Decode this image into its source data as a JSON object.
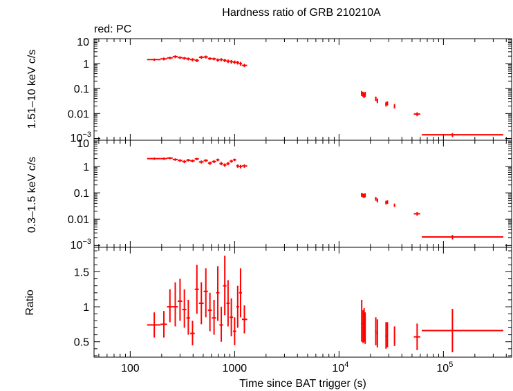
{
  "chart_data": {
    "type": "scatter",
    "title": "Hardness ratio of GRB 210210A",
    "legend_text": "red: PC",
    "xlabel": "Time since BAT trigger (s)",
    "x_scale": "log",
    "xlim": [
      45,
      450000
    ],
    "x_tick_labels": [
      {
        "value": 100,
        "label": "100"
      },
      {
        "value": 1000,
        "label": "1000"
      },
      {
        "value": 10000,
        "base": "10",
        "exp": "4"
      },
      {
        "value": 100000,
        "base": "10",
        "exp": "5"
      }
    ],
    "series_color": "#ff0000",
    "panels": [
      {
        "name": "hard",
        "ylabel": "1.51–10 keV c/s",
        "y_scale": "log",
        "ylim": [
          0.00085,
          10
        ],
        "y_tick_labels": [
          {
            "value": 10,
            "label": "10"
          },
          {
            "value": 1,
            "label": "1"
          },
          {
            "value": 0.1,
            "label": "0.1"
          },
          {
            "value": 0.01,
            "label": "0.01"
          },
          {
            "value": 0.001,
            "base": "10",
            "exp": "−3"
          }
        ],
        "points": [
          {
            "x": 170,
            "y": 1.45,
            "xlo": 145,
            "xhi": 195,
            "ylo": 1.3,
            "yhi": 1.6
          },
          {
            "x": 210,
            "y": 1.55,
            "xlo": 195,
            "xhi": 225,
            "ylo": 1.35,
            "yhi": 1.75
          },
          {
            "x": 240,
            "y": 1.7,
            "xlo": 225,
            "xhi": 255,
            "ylo": 1.5,
            "yhi": 1.9
          },
          {
            "x": 270,
            "y": 1.9,
            "xlo": 255,
            "xhi": 285,
            "ylo": 1.65,
            "yhi": 2.15
          },
          {
            "x": 300,
            "y": 1.75,
            "xlo": 285,
            "xhi": 315,
            "ylo": 1.55,
            "yhi": 1.95
          },
          {
            "x": 330,
            "y": 1.65,
            "xlo": 315,
            "xhi": 345,
            "ylo": 1.45,
            "yhi": 1.85
          },
          {
            "x": 360,
            "y": 1.55,
            "xlo": 345,
            "xhi": 375,
            "ylo": 1.35,
            "yhi": 1.75
          },
          {
            "x": 395,
            "y": 1.45,
            "xlo": 375,
            "xhi": 415,
            "ylo": 1.25,
            "yhi": 1.65
          },
          {
            "x": 435,
            "y": 1.35,
            "xlo": 415,
            "xhi": 455,
            "ylo": 1.15,
            "yhi": 1.55
          },
          {
            "x": 480,
            "y": 1.8,
            "xlo": 455,
            "xhi": 505,
            "ylo": 1.55,
            "yhi": 2.05
          },
          {
            "x": 530,
            "y": 1.85,
            "xlo": 505,
            "xhi": 555,
            "ylo": 1.6,
            "yhi": 2.1
          },
          {
            "x": 580,
            "y": 1.6,
            "xlo": 555,
            "xhi": 605,
            "ylo": 1.4,
            "yhi": 1.8
          },
          {
            "x": 635,
            "y": 1.55,
            "xlo": 605,
            "xhi": 665,
            "ylo": 1.35,
            "yhi": 1.75
          },
          {
            "x": 690,
            "y": 1.4,
            "xlo": 665,
            "xhi": 715,
            "ylo": 1.2,
            "yhi": 1.6
          },
          {
            "x": 745,
            "y": 1.45,
            "xlo": 715,
            "xhi": 775,
            "ylo": 1.25,
            "yhi": 1.65
          },
          {
            "x": 805,
            "y": 1.35,
            "xlo": 775,
            "xhi": 835,
            "ylo": 1.15,
            "yhi": 1.55
          },
          {
            "x": 865,
            "y": 1.25,
            "xlo": 835,
            "xhi": 895,
            "ylo": 1.05,
            "yhi": 1.45
          },
          {
            "x": 930,
            "y": 1.2,
            "xlo": 895,
            "xhi": 965,
            "ylo": 1.0,
            "yhi": 1.4
          },
          {
            "x": 1000,
            "y": 1.15,
            "xlo": 965,
            "xhi": 1035,
            "ylo": 0.97,
            "yhi": 1.33
          },
          {
            "x": 1070,
            "y": 1.1,
            "xlo": 1035,
            "xhi": 1105,
            "ylo": 0.92,
            "yhi": 1.28
          },
          {
            "x": 1140,
            "y": 1.0,
            "xlo": 1105,
            "xhi": 1175,
            "ylo": 0.83,
            "yhi": 1.17
          },
          {
            "x": 1240,
            "y": 0.85,
            "xlo": 1175,
            "xhi": 1320,
            "ylo": 0.72,
            "yhi": 0.98
          },
          {
            "x": 16500,
            "y": 0.065,
            "xlo": 16200,
            "xhi": 16800,
            "ylo": 0.05,
            "yhi": 0.08
          },
          {
            "x": 17000,
            "y": 0.06,
            "xlo": 16800,
            "xhi": 17200,
            "ylo": 0.046,
            "yhi": 0.074
          },
          {
            "x": 17400,
            "y": 0.055,
            "xlo": 17200,
            "xhi": 17600,
            "ylo": 0.042,
            "yhi": 0.068
          },
          {
            "x": 17800,
            "y": 0.06,
            "xlo": 17600,
            "xhi": 18000,
            "ylo": 0.046,
            "yhi": 0.074
          },
          {
            "x": 22500,
            "y": 0.04,
            "xlo": 22100,
            "xhi": 22900,
            "ylo": 0.032,
            "yhi": 0.048
          },
          {
            "x": 23300,
            "y": 0.033,
            "xlo": 22900,
            "xhi": 23700,
            "ylo": 0.026,
            "yhi": 0.04
          },
          {
            "x": 28200,
            "y": 0.024,
            "xlo": 27700,
            "xhi": 28700,
            "ylo": 0.019,
            "yhi": 0.029
          },
          {
            "x": 29100,
            "y": 0.026,
            "xlo": 28700,
            "xhi": 29500,
            "ylo": 0.021,
            "yhi": 0.031
          },
          {
            "x": 34000,
            "y": 0.02,
            "xlo": 33500,
            "xhi": 34500,
            "ylo": 0.016,
            "yhi": 0.024
          },
          {
            "x": 56000,
            "y": 0.0095,
            "xlo": 52000,
            "xhi": 60000,
            "ylo": 0.0078,
            "yhi": 0.0112
          },
          {
            "x": 122000,
            "y": 0.0014,
            "xlo": 62000,
            "xhi": 375000,
            "ylo": 0.00115,
            "yhi": 0.00165
          }
        ]
      },
      {
        "name": "soft",
        "ylabel": "0.3–1.5 keV c/s",
        "y_scale": "log",
        "ylim": [
          0.00085,
          10
        ],
        "y_tick_labels": [
          {
            "value": 10,
            "label": "10"
          },
          {
            "value": 1,
            "label": "1"
          },
          {
            "value": 0.1,
            "label": "0.1"
          },
          {
            "value": 0.01,
            "label": "0.01"
          },
          {
            "value": 0.001,
            "base": "10",
            "exp": "−3"
          }
        ],
        "points": [
          {
            "x": 170,
            "y": 2.0,
            "xlo": 145,
            "xhi": 195,
            "ylo": 1.8,
            "yhi": 2.2
          },
          {
            "x": 210,
            "y": 2.0,
            "xlo": 195,
            "xhi": 225,
            "ylo": 1.8,
            "yhi": 2.2
          },
          {
            "x": 240,
            "y": 2.1,
            "xlo": 225,
            "xhi": 255,
            "ylo": 1.9,
            "yhi": 2.3
          },
          {
            "x": 270,
            "y": 1.85,
            "xlo": 255,
            "xhi": 285,
            "ylo": 1.65,
            "yhi": 2.05
          },
          {
            "x": 300,
            "y": 1.7,
            "xlo": 285,
            "xhi": 315,
            "ylo": 1.5,
            "yhi": 1.9
          },
          {
            "x": 330,
            "y": 1.55,
            "xlo": 315,
            "xhi": 345,
            "ylo": 1.35,
            "yhi": 1.75
          },
          {
            "x": 360,
            "y": 1.75,
            "xlo": 345,
            "xhi": 375,
            "ylo": 1.55,
            "yhi": 1.95
          },
          {
            "x": 395,
            "y": 1.65,
            "xlo": 375,
            "xhi": 415,
            "ylo": 1.45,
            "yhi": 1.85
          },
          {
            "x": 435,
            "y": 1.95,
            "xlo": 415,
            "xhi": 455,
            "ylo": 1.75,
            "yhi": 2.15
          },
          {
            "x": 480,
            "y": 1.5,
            "xlo": 455,
            "xhi": 505,
            "ylo": 1.3,
            "yhi": 1.7
          },
          {
            "x": 530,
            "y": 1.7,
            "xlo": 505,
            "xhi": 555,
            "ylo": 1.5,
            "yhi": 1.9
          },
          {
            "x": 580,
            "y": 1.35,
            "xlo": 555,
            "xhi": 605,
            "ylo": 1.15,
            "yhi": 1.55
          },
          {
            "x": 635,
            "y": 1.55,
            "xlo": 605,
            "xhi": 665,
            "ylo": 1.35,
            "yhi": 1.75
          },
          {
            "x": 690,
            "y": 1.8,
            "xlo": 665,
            "xhi": 715,
            "ylo": 1.6,
            "yhi": 2.0
          },
          {
            "x": 745,
            "y": 1.3,
            "xlo": 715,
            "xhi": 775,
            "ylo": 1.12,
            "yhi": 1.48
          },
          {
            "x": 805,
            "y": 1.15,
            "xlo": 775,
            "xhi": 835,
            "ylo": 0.98,
            "yhi": 1.32
          },
          {
            "x": 865,
            "y": 1.3,
            "xlo": 835,
            "xhi": 895,
            "ylo": 1.12,
            "yhi": 1.48
          },
          {
            "x": 930,
            "y": 1.6,
            "xlo": 895,
            "xhi": 965,
            "ylo": 1.4,
            "yhi": 1.8
          },
          {
            "x": 1000,
            "y": 1.8,
            "xlo": 965,
            "xhi": 1035,
            "ylo": 1.6,
            "yhi": 2.0
          },
          {
            "x": 1070,
            "y": 1.05,
            "xlo": 1035,
            "xhi": 1105,
            "ylo": 0.9,
            "yhi": 1.2
          },
          {
            "x": 1140,
            "y": 1.0,
            "xlo": 1105,
            "xhi": 1175,
            "ylo": 0.85,
            "yhi": 1.15
          },
          {
            "x": 1240,
            "y": 1.05,
            "xlo": 1175,
            "xhi": 1320,
            "ylo": 0.9,
            "yhi": 1.2
          },
          {
            "x": 16500,
            "y": 0.085,
            "xlo": 16200,
            "xhi": 16800,
            "ylo": 0.07,
            "yhi": 0.1
          },
          {
            "x": 17000,
            "y": 0.08,
            "xlo": 16800,
            "xhi": 17200,
            "ylo": 0.066,
            "yhi": 0.094
          },
          {
            "x": 17400,
            "y": 0.078,
            "xlo": 17200,
            "xhi": 17600,
            "ylo": 0.064,
            "yhi": 0.092
          },
          {
            "x": 17800,
            "y": 0.082,
            "xlo": 17600,
            "xhi": 18000,
            "ylo": 0.068,
            "yhi": 0.096
          },
          {
            "x": 22500,
            "y": 0.06,
            "xlo": 22100,
            "xhi": 22900,
            "ylo": 0.05,
            "yhi": 0.07
          },
          {
            "x": 23300,
            "y": 0.052,
            "xlo": 22900,
            "xhi": 23700,
            "ylo": 0.043,
            "yhi": 0.061
          },
          {
            "x": 28200,
            "y": 0.043,
            "xlo": 27700,
            "xhi": 28700,
            "ylo": 0.036,
            "yhi": 0.05
          },
          {
            "x": 29100,
            "y": 0.045,
            "xlo": 28700,
            "xhi": 29500,
            "ylo": 0.038,
            "yhi": 0.052
          },
          {
            "x": 34000,
            "y": 0.034,
            "xlo": 33500,
            "xhi": 34500,
            "ylo": 0.029,
            "yhi": 0.039
          },
          {
            "x": 56000,
            "y": 0.016,
            "xlo": 52000,
            "xhi": 60000,
            "ylo": 0.0135,
            "yhi": 0.0185
          },
          {
            "x": 122000,
            "y": 0.0021,
            "xlo": 62000,
            "xhi": 375000,
            "ylo": 0.0017,
            "yhi": 0.0025
          }
        ]
      },
      {
        "name": "ratio",
        "ylabel": "Ratio",
        "y_scale": "linear",
        "ylim": [
          0.28,
          1.85
        ],
        "y_tick_labels": [
          {
            "value": 1.5,
            "label": "1.5"
          },
          {
            "value": 1.0,
            "label": "1"
          },
          {
            "value": 0.5,
            "label": "0.5"
          }
        ],
        "y_minor_ticks": [
          0.3,
          0.4,
          0.6,
          0.7,
          0.8,
          0.9,
          1.1,
          1.2,
          1.3,
          1.4,
          1.6,
          1.7,
          1.8
        ],
        "points": [
          {
            "x": 170,
            "y": 0.74,
            "xlo": 145,
            "xhi": 195,
            "ylo": 0.56,
            "yhi": 0.92
          },
          {
            "x": 210,
            "y": 0.75,
            "xlo": 195,
            "xhi": 225,
            "ylo": 0.56,
            "yhi": 0.94
          },
          {
            "x": 240,
            "y": 1.0,
            "xlo": 225,
            "xhi": 255,
            "ylo": 0.78,
            "yhi": 1.25
          },
          {
            "x": 270,
            "y": 1.0,
            "xlo": 255,
            "xhi": 285,
            "ylo": 0.72,
            "yhi": 1.35
          },
          {
            "x": 300,
            "y": 1.08,
            "xlo": 285,
            "xhi": 315,
            "ylo": 0.8,
            "yhi": 1.4
          },
          {
            "x": 330,
            "y": 0.96,
            "xlo": 315,
            "xhi": 345,
            "ylo": 0.7,
            "yhi": 1.25
          },
          {
            "x": 360,
            "y": 0.84,
            "xlo": 345,
            "xhi": 375,
            "ylo": 0.6,
            "yhi": 1.1
          },
          {
            "x": 395,
            "y": 0.62,
            "xlo": 375,
            "xhi": 415,
            "ylo": 0.45,
            "yhi": 0.8
          },
          {
            "x": 435,
            "y": 1.25,
            "xlo": 415,
            "xhi": 455,
            "ylo": 0.9,
            "yhi": 1.6
          },
          {
            "x": 480,
            "y": 1.05,
            "xlo": 455,
            "xhi": 505,
            "ylo": 0.75,
            "yhi": 1.35
          },
          {
            "x": 530,
            "y": 1.22,
            "xlo": 505,
            "xhi": 555,
            "ylo": 0.85,
            "yhi": 1.55
          },
          {
            "x": 580,
            "y": 0.95,
            "xlo": 555,
            "xhi": 605,
            "ylo": 0.65,
            "yhi": 1.2
          },
          {
            "x": 635,
            "y": 0.84,
            "xlo": 605,
            "xhi": 665,
            "ylo": 0.6,
            "yhi": 1.1
          },
          {
            "x": 690,
            "y": 1.2,
            "xlo": 665,
            "xhi": 715,
            "ylo": 0.8,
            "yhi": 1.58
          },
          {
            "x": 745,
            "y": 0.74,
            "xlo": 715,
            "xhi": 775,
            "ylo": 0.5,
            "yhi": 1.0
          },
          {
            "x": 805,
            "y": 1.3,
            "xlo": 775,
            "xhi": 835,
            "ylo": 0.88,
            "yhi": 1.73
          },
          {
            "x": 865,
            "y": 1.05,
            "xlo": 835,
            "xhi": 895,
            "ylo": 0.72,
            "yhi": 1.38
          },
          {
            "x": 930,
            "y": 0.85,
            "xlo": 895,
            "xhi": 965,
            "ylo": 0.58,
            "yhi": 1.12
          },
          {
            "x": 1000,
            "y": 0.65,
            "xlo": 965,
            "xhi": 1035,
            "ylo": 0.45,
            "yhi": 0.85
          },
          {
            "x": 1070,
            "y": 1.0,
            "xlo": 1035,
            "xhi": 1105,
            "ylo": 0.7,
            "yhi": 1.3
          },
          {
            "x": 1140,
            "y": 1.2,
            "xlo": 1105,
            "xhi": 1175,
            "ylo": 0.85,
            "yhi": 1.55
          },
          {
            "x": 1240,
            "y": 0.82,
            "xlo": 1175,
            "xhi": 1320,
            "ylo": 0.62,
            "yhi": 1.02
          },
          {
            "x": 16500,
            "y": 0.76,
            "xlo": 16200,
            "xhi": 16800,
            "ylo": 0.5,
            "yhi": 1.1
          },
          {
            "x": 17000,
            "y": 0.7,
            "xlo": 16800,
            "xhi": 17200,
            "ylo": 0.48,
            "yhi": 0.95
          },
          {
            "x": 17400,
            "y": 0.72,
            "xlo": 17200,
            "xhi": 17600,
            "ylo": 0.5,
            "yhi": 0.98
          },
          {
            "x": 17800,
            "y": 0.68,
            "xlo": 17600,
            "xhi": 18000,
            "ylo": 0.47,
            "yhi": 0.92
          },
          {
            "x": 22500,
            "y": 0.65,
            "xlo": 22100,
            "xhi": 22900,
            "ylo": 0.45,
            "yhi": 0.85
          },
          {
            "x": 23300,
            "y": 0.62,
            "xlo": 22900,
            "xhi": 23700,
            "ylo": 0.42,
            "yhi": 0.82
          },
          {
            "x": 28200,
            "y": 0.58,
            "xlo": 27700,
            "xhi": 28700,
            "ylo": 0.4,
            "yhi": 0.78
          },
          {
            "x": 29100,
            "y": 0.6,
            "xlo": 28700,
            "xhi": 29500,
            "ylo": 0.42,
            "yhi": 0.78
          },
          {
            "x": 34000,
            "y": 0.58,
            "xlo": 33500,
            "xhi": 34500,
            "ylo": 0.44,
            "yhi": 0.72
          },
          {
            "x": 56000,
            "y": 0.57,
            "xlo": 52000,
            "xhi": 60000,
            "ylo": 0.38,
            "yhi": 0.76
          },
          {
            "x": 122000,
            "y": 0.66,
            "xlo": 62000,
            "xhi": 375000,
            "ylo": 0.35,
            "yhi": 0.97
          }
        ]
      }
    ]
  }
}
